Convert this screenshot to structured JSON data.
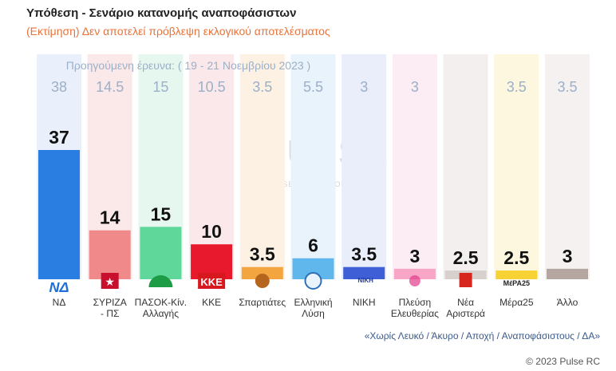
{
  "header": {
    "title": "Υπόθεση - Σενάριο κατανομής αναποφάσιστων",
    "subtitle": "(Εκτίμηση)   Δεν αποτελεί πρόβλεψη εκλογικού αποτελέσματος"
  },
  "chart_data": {
    "type": "bar",
    "previous_label": "Προηγούμενη έρευνα:  ( 19 - 21 Νοεμβρίου 2023 )",
    "categories": [
      "ΝΔ",
      "ΣΥΡΙΖΑ\n- ΠΣ",
      "ΠΑΣΟΚ-Κίν.\nΑλλαγής",
      "ΚΚΕ",
      "Σπαρτιάτες",
      "Ελληνική\nΛύση",
      "ΝΙΚΗ",
      "Πλεύση\nΕλευθερίας",
      "Νέα\nΑριστερά",
      "Μέρα25",
      "Άλλο"
    ],
    "series": [
      {
        "values": [
          37,
          14,
          15,
          10,
          3.5,
          6,
          3.5,
          3,
          2.5,
          2.5,
          3
        ]
      },
      {
        "values": [
          38,
          14.5,
          15,
          10.5,
          3.5,
          5.5,
          3,
          3,
          null,
          3.5,
          3.5
        ]
      }
    ],
    "value_labels": [
      "37",
      "14",
      "15",
      "10",
      "3.5",
      "6",
      "3.5",
      "3",
      "2.5",
      "2.5",
      "3"
    ],
    "previous_labels": [
      "38",
      "14.5",
      "15",
      "10.5",
      "3.5",
      "5.5",
      "3",
      "3",
      "",
      "3.5",
      "3.5"
    ],
    "colors": [
      "#2a7de1",
      "#f08a8a",
      "#5fd69a",
      "#e8192c",
      "#f3a640",
      "#5fb7ec",
      "#3e5fd6",
      "#f7a6c6",
      "#d8d0cc",
      "#f8d234",
      "#b5a6a2"
    ],
    "bg_colors": [
      "#e9f0fb",
      "#fbe9ea",
      "#e6f7ef",
      "#fbe8ea",
      "#fcf1e3",
      "#e8f3fb",
      "#eaedfa",
      "#fcecf3",
      "#f3efee",
      "#fdf7df",
      "#f4f1f0"
    ],
    "ylim": [
      0,
      40
    ],
    "logos": [
      "ΝΔ",
      "★",
      "",
      "ΚΚΕ",
      "",
      "",
      "ΝΙΚΗ",
      "",
      "",
      "ΜέΡΑ25",
      ""
    ],
    "watermark": "PULSE",
    "watermark_sub": "RESEARCH & CONSULTING"
  },
  "footnote": "«Χωρίς Λευκό / Άκυρο / Αποχή / Αναποφάσιστους / ΔΑ»",
  "copyright": "© 2023 Pulse RC"
}
